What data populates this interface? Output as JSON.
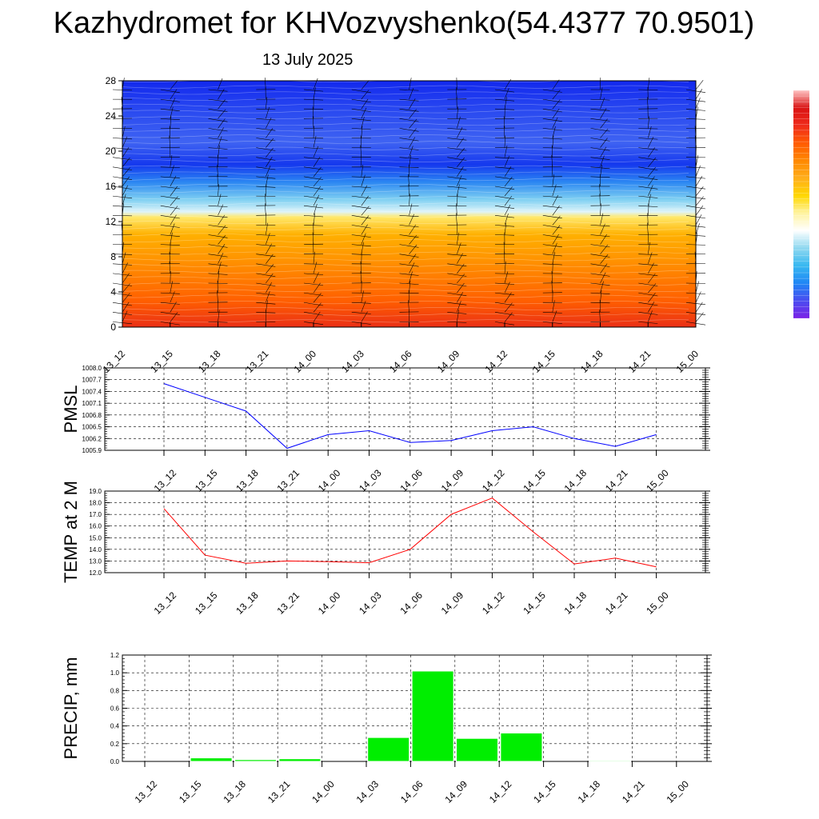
{
  "header": {
    "title": "Kazhydromet for KHVozvyshenko(54.4377 70.9501)",
    "date": "13 July 2025"
  },
  "colorbar": {
    "colors": [
      "#7b22e6",
      "#4a4cf0",
      "#1f86f5",
      "#38b8f0",
      "#8fd8f0",
      "#ffffff",
      "#fff3a0",
      "#ffd700",
      "#ffae1a",
      "#ff8800",
      "#ff5a00",
      "#ef2b1b",
      "#d91414",
      "#ffc4c4"
    ]
  },
  "chart_data": [
    {
      "type": "heatmap",
      "name_hint": "cross-section",
      "x_labels": [
        "13_12",
        "13_15",
        "13_18",
        "13_21",
        "14_00",
        "14_03",
        "14_06",
        "14_09",
        "14_12",
        "14_15",
        "14_18",
        "14_21",
        "15_00"
      ],
      "y_ticks": [
        0,
        4,
        8,
        12,
        16,
        20,
        24,
        28
      ],
      "ylim": [
        0,
        28
      ],
      "color_stops": [
        {
          "y": 0,
          "color": "#ea2f16"
        },
        {
          "y": 3,
          "color": "#ff5f00"
        },
        {
          "y": 7,
          "color": "#ff8c00"
        },
        {
          "y": 10.5,
          "color": "#ffb000"
        },
        {
          "y": 12.5,
          "color": "#ffe86a"
        },
        {
          "y": 13.1,
          "color": "#dff4f9"
        },
        {
          "y": 14.5,
          "color": "#7fd0f2"
        },
        {
          "y": 16.5,
          "color": "#2b86f2"
        },
        {
          "y": 18.5,
          "color": "#1538ee"
        },
        {
          "y": 21,
          "color": "#3f63f2"
        },
        {
          "y": 24.5,
          "color": "#2a4af0"
        },
        {
          "y": 28,
          "color": "#1228ee"
        }
      ]
    },
    {
      "type": "line",
      "ylabel": "PMSL",
      "categories": [
        "13_12",
        "13_15",
        "13_18",
        "13_21",
        "14_00",
        "14_03",
        "14_06",
        "14_09",
        "14_12",
        "14_15",
        "14_18",
        "14_21",
        "15_00"
      ],
      "series": [
        {
          "values": [
            1007.6,
            1007.25,
            1006.9,
            1005.95,
            1006.3,
            1006.4,
            1006.1,
            1006.15,
            1006.4,
            1006.5,
            1006.2,
            1006.0,
            1006.3
          ],
          "color": "#0000ff"
        }
      ],
      "ylim": [
        1005.9,
        1008.0
      ],
      "y_ticks": [
        "1008.0",
        "1007.7",
        "1007.4",
        "1007.1",
        "1006.8",
        "1006.5",
        "1006.2",
        "1005.9"
      ],
      "grid": true
    },
    {
      "type": "line",
      "ylabel": "TEMP at 2 M",
      "categories": [
        "13_12",
        "13_15",
        "13_18",
        "13_21",
        "14_00",
        "14_03",
        "14_06",
        "14_09",
        "14_12",
        "14_15",
        "14_18",
        "14_21",
        "15_00"
      ],
      "series": [
        {
          "values": [
            17.5,
            13.5,
            12.8,
            13.0,
            12.95,
            12.85,
            14.0,
            17.0,
            18.4,
            15.5,
            12.75,
            13.25,
            12.5
          ],
          "color": "#ff0000"
        }
      ],
      "ylim": [
        12.0,
        19.0
      ],
      "y_ticks": [
        "19.0",
        "18.0",
        "17.0",
        "16.0",
        "15.0",
        "14.0",
        "13.0",
        "12.0"
      ],
      "grid": true
    },
    {
      "type": "bar",
      "ylabel": "PRECIP, mm",
      "categories": [
        "13_12",
        "13_15",
        "13_18",
        "13_21",
        "14_00",
        "14_03",
        "14_06",
        "14_09",
        "14_12",
        "14_15",
        "14_18",
        "14_21",
        "15_00"
      ],
      "values": [
        0,
        0.04,
        0.02,
        0.03,
        0,
        0.27,
        1.02,
        0.26,
        0.32,
        0,
        0.01,
        0,
        0
      ],
      "ylim": [
        0,
        1.2
      ],
      "y_ticks": [
        "1.2",
        "1.0",
        "0.8",
        "0.6",
        "0.4",
        "0.2",
        "0.0"
      ],
      "bar_color": "#00ee00",
      "grid": true
    }
  ]
}
